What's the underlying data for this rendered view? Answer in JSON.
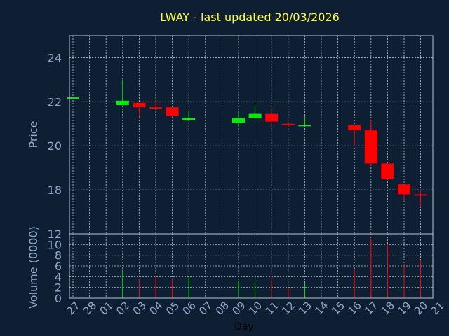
{
  "chart_data": [
    {
      "type": "candlestick",
      "title": "LWAY - last updated 20/03/2026",
      "xlabel": "",
      "ylabel": "Price",
      "ylim": [
        16,
        25
      ],
      "yticks": [
        18,
        20,
        22,
        24
      ],
      "grid": true,
      "up_color": "#00ee00",
      "down_color": "#ff0000",
      "candles": [
        {
          "day": "27",
          "open": 22.2,
          "high": 22.2,
          "low": 22.2,
          "close": 22.2
        },
        {
          "day": "02",
          "open": 21.85,
          "high": 23.0,
          "low": 21.85,
          "close": 22.05
        },
        {
          "day": "03",
          "open": 21.95,
          "high": 21.95,
          "low": 21.3,
          "close": 21.75
        },
        {
          "day": "04",
          "open": 21.75,
          "high": 22.05,
          "low": 21.75,
          "close": 21.7
        },
        {
          "day": "05",
          "open": 21.75,
          "high": 21.75,
          "low": 21.3,
          "close": 21.35
        },
        {
          "day": "06",
          "open": 21.15,
          "high": 21.6,
          "low": 21.15,
          "close": 21.25
        },
        {
          "day": "09",
          "open": 21.05,
          "high": 21.5,
          "low": 20.9,
          "close": 21.25
        },
        {
          "day": "10",
          "open": 21.25,
          "high": 21.85,
          "low": 21.25,
          "close": 21.45
        },
        {
          "day": "11",
          "open": 21.45,
          "high": 21.65,
          "low": 20.95,
          "close": 21.1
        },
        {
          "day": "12",
          "open": 21.0,
          "high": 21.1,
          "low": 20.9,
          "close": 20.95
        },
        {
          "day": "13",
          "open": 20.9,
          "high": 21.35,
          "low": 20.85,
          "close": 20.95
        },
        {
          "day": "16",
          "open": 20.95,
          "high": 20.95,
          "low": 20.0,
          "close": 20.7
        },
        {
          "day": "17",
          "open": 20.7,
          "high": 21.15,
          "low": 19.1,
          "close": 19.2
        },
        {
          "day": "18",
          "open": 19.2,
          "high": 19.2,
          "low": 18.45,
          "close": 18.5
        },
        {
          "day": "19",
          "open": 18.25,
          "high": 18.25,
          "low": 17.5,
          "close": 17.8
        },
        {
          "day": "20",
          "open": 17.8,
          "high": 18.0,
          "low": 17.2,
          "close": 17.75
        }
      ]
    },
    {
      "type": "bar",
      "title": "",
      "xlabel": "Day",
      "ylabel": "Volume (0000)",
      "ylim": [
        0,
        12
      ],
      "yticks": [
        0,
        2,
        4,
        6,
        8,
        10
      ],
      "ytick_top": "12",
      "grid": true,
      "categories": [
        "27",
        "28",
        "01",
        "02",
        "03",
        "04",
        "05",
        "06",
        "07",
        "08",
        "09",
        "10",
        "11",
        "12",
        "13",
        "14",
        "15",
        "16",
        "17",
        "18",
        "19",
        "20",
        "21"
      ],
      "bars": [
        {
          "day": "27",
          "value": 0.0,
          "color": "#ff0000"
        },
        {
          "day": "02",
          "value": 5.3,
          "color": "#00ee00"
        },
        {
          "day": "03",
          "value": 3.6,
          "color": "#ff0000"
        },
        {
          "day": "04",
          "value": 4.2,
          "color": "#ff0000"
        },
        {
          "day": "05",
          "value": 3.5,
          "color": "#ff0000"
        },
        {
          "day": "06",
          "value": 4.0,
          "color": "#00ee00"
        },
        {
          "day": "09",
          "value": 3.2,
          "color": "#00ee00"
        },
        {
          "day": "10",
          "value": 3.2,
          "color": "#00ee00"
        },
        {
          "day": "11",
          "value": 3.8,
          "color": "#ff0000"
        },
        {
          "day": "12",
          "value": 2.0,
          "color": "#ff0000"
        },
        {
          "day": "13",
          "value": 2.8,
          "color": "#00ee00"
        },
        {
          "day": "16",
          "value": 5.3,
          "color": "#ff0000"
        },
        {
          "day": "17",
          "value": 11.0,
          "color": "#ff0000"
        },
        {
          "day": "18",
          "value": 10.1,
          "color": "#ff0000"
        },
        {
          "day": "19",
          "value": 6.4,
          "color": "#ff0000"
        },
        {
          "day": "20",
          "value": 7.2,
          "color": "#ff0000"
        }
      ]
    }
  ],
  "colors": {
    "background": "#0f1f33",
    "frame": "#b8c4d6",
    "grid": "#b8c4d6",
    "title": "#ffff33",
    "tick_label": "#8fa8c8",
    "axis_label": "#8fa8c8",
    "xlabel": "#000000"
  }
}
